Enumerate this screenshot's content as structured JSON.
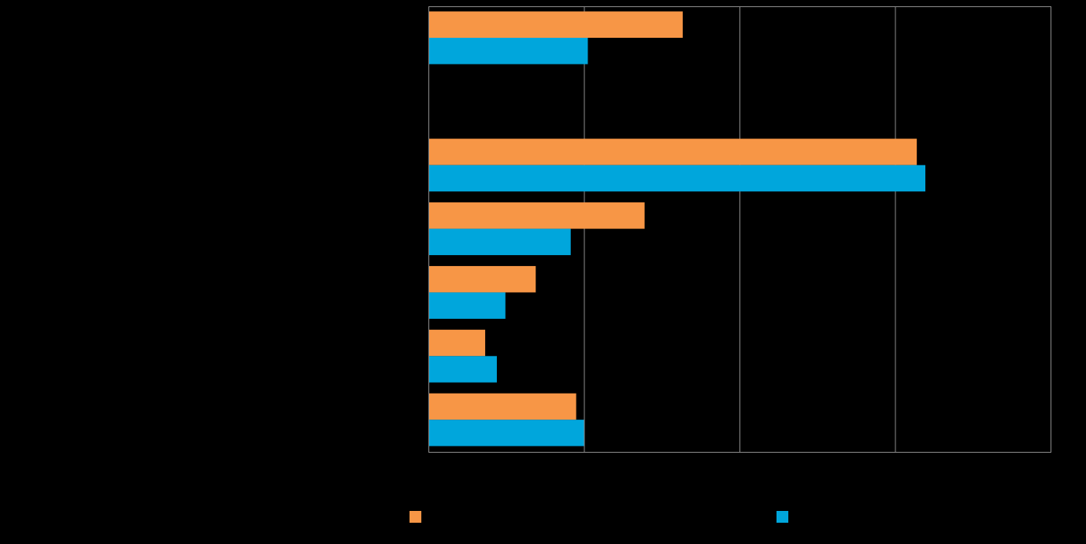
{
  "chart_data": {
    "type": "bar",
    "orientation": "horizontal",
    "title": "",
    "xlabel": "",
    "ylabel": "",
    "categories": [
      "",
      "",
      "",
      "",
      "",
      "",
      ""
    ],
    "series": [
      {
        "color": "#F79646",
        "values": [
          32.7,
          0,
          62.8,
          27.8,
          13.8,
          7.3,
          19.0
        ]
      },
      {
        "color": "#00A6DC",
        "values": [
          20.5,
          0,
          63.9,
          18.3,
          9.9,
          8.8,
          20.0
        ]
      }
    ],
    "xlim": [
      0,
      80
    ],
    "x_ticks": [
      0,
      20,
      40,
      60,
      80
    ],
    "grid": true,
    "legend_position": "bottom",
    "background": "#000000",
    "gridline_color": "#8C8C8C"
  }
}
